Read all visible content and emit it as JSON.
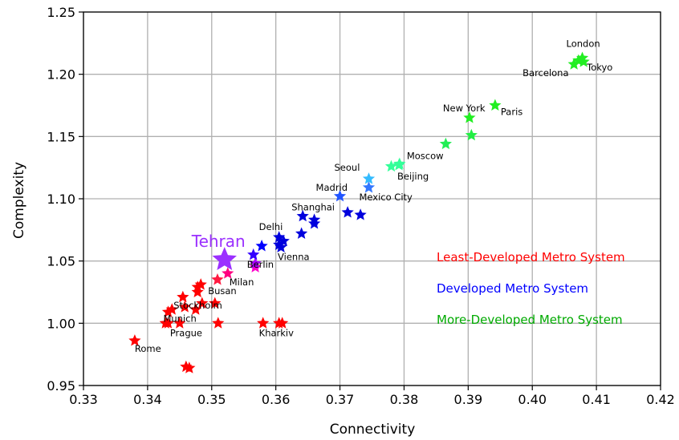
{
  "chart_data": {
    "type": "scatter",
    "title": "",
    "xlabel": "Connectivity",
    "ylabel": "Complexity",
    "xlim": [
      0.33,
      0.42
    ],
    "ylim": [
      0.95,
      1.25
    ],
    "x_ticks": [
      "0.33",
      "0.34",
      "0.35",
      "0.36",
      "0.37",
      "0.38",
      "0.39",
      "0.40",
      "0.41",
      "0.42"
    ],
    "y_ticks": [
      "0.95",
      "1.00",
      "1.05",
      "1.10",
      "1.15",
      "1.20",
      "1.25"
    ],
    "grid": true,
    "marker": "star",
    "legend": [
      {
        "label": "Least-Developed Metro System",
        "color": "#ff0000"
      },
      {
        "label": "Developed Metro System",
        "color": "#0000ff"
      },
      {
        "label": "More-Developed Metro System",
        "color": "#00aa00"
      }
    ],
    "highlight": {
      "label": "Tehran",
      "x": 0.352,
      "y": 1.051,
      "color": "#9b30ff"
    },
    "points": [
      {
        "x": 0.338,
        "y": 0.986,
        "color": "#ff0000",
        "label": "Rome"
      },
      {
        "x": 0.3428,
        "y": 1.0,
        "color": "#ff0000",
        "label": ""
      },
      {
        "x": 0.3432,
        "y": 1.0,
        "color": "#ff0000",
        "label": ""
      },
      {
        "x": 0.345,
        "y": 1.0,
        "color": "#ff0000",
        "label": "Prague"
      },
      {
        "x": 0.351,
        "y": 1.0,
        "color": "#ff0000",
        "label": ""
      },
      {
        "x": 0.3432,
        "y": 1.009,
        "color": "#ff0000",
        "label": "Munich"
      },
      {
        "x": 0.3438,
        "y": 1.011,
        "color": "#ff0000",
        "label": ""
      },
      {
        "x": 0.3455,
        "y": 1.021,
        "color": "#ff0000",
        "label": ""
      },
      {
        "x": 0.3458,
        "y": 1.013,
        "color": "#ff0000",
        "label": "Stockholm"
      },
      {
        "x": 0.3475,
        "y": 1.011,
        "color": "#ff0000",
        "label": ""
      },
      {
        "x": 0.3485,
        "y": 1.016,
        "color": "#ff0000",
        "label": ""
      },
      {
        "x": 0.3505,
        "y": 1.016,
        "color": "#ff0000",
        "label": ""
      },
      {
        "x": 0.3478,
        "y": 1.025,
        "color": "#ff0000",
        "label": ""
      },
      {
        "x": 0.3478,
        "y": 1.029,
        "color": "#ff0000",
        "label": ""
      },
      {
        "x": 0.3483,
        "y": 1.031,
        "color": "#ff0000",
        "label": "Busan"
      },
      {
        "x": 0.3509,
        "y": 1.035,
        "color": "#ff1a40",
        "label": ""
      },
      {
        "x": 0.3525,
        "y": 1.04,
        "color": "#ff0080",
        "label": "Milan"
      },
      {
        "x": 0.346,
        "y": 0.965,
        "color": "#ff0000",
        "label": ""
      },
      {
        "x": 0.3465,
        "y": 0.964,
        "color": "#ff0000",
        "label": ""
      },
      {
        "x": 0.358,
        "y": 1.0,
        "color": "#ff0000",
        "label": ""
      },
      {
        "x": 0.3605,
        "y": 1.0,
        "color": "#ff0000",
        "label": "Kharkiv"
      },
      {
        "x": 0.361,
        "y": 1.0,
        "color": "#ff0000",
        "label": ""
      },
      {
        "x": 0.3568,
        "y": 1.045,
        "color": "#ff00cc",
        "label": ""
      },
      {
        "x": 0.3568,
        "y": 1.048,
        "color": "#aa00ff",
        "label": ""
      },
      {
        "x": 0.3565,
        "y": 1.055,
        "color": "#3300ff",
        "label": "Berlin"
      },
      {
        "x": 0.3578,
        "y": 1.062,
        "color": "#0000ff",
        "label": ""
      },
      {
        "x": 0.3605,
        "y": 1.063,
        "color": "#0000dd",
        "label": ""
      },
      {
        "x": 0.3608,
        "y": 1.061,
        "color": "#0000dd",
        "label": "Vienna"
      },
      {
        "x": 0.3605,
        "y": 1.069,
        "color": "#0000dd",
        "label": "Delhi"
      },
      {
        "x": 0.3612,
        "y": 1.066,
        "color": "#0000dd",
        "label": ""
      },
      {
        "x": 0.364,
        "y": 1.072,
        "color": "#0000dd",
        "label": ""
      },
      {
        "x": 0.3642,
        "y": 1.086,
        "color": "#0000dd",
        "label": "Shanghai"
      },
      {
        "x": 0.366,
        "y": 1.08,
        "color": "#0000dd",
        "label": ""
      },
      {
        "x": 0.366,
        "y": 1.083,
        "color": "#0000dd",
        "label": ""
      },
      {
        "x": 0.3712,
        "y": 1.089,
        "color": "#0000dd",
        "label": ""
      },
      {
        "x": 0.3732,
        "y": 1.087,
        "color": "#0000dd",
        "label": ""
      },
      {
        "x": 0.37,
        "y": 1.102,
        "color": "#2255ff",
        "label": "Madrid"
      },
      {
        "x": 0.3745,
        "y": 1.109,
        "color": "#3377ff",
        "label": "Mexico City"
      },
      {
        "x": 0.3745,
        "y": 1.116,
        "color": "#33bbff",
        "label": "Seoul"
      },
      {
        "x": 0.378,
        "y": 1.126,
        "color": "#33ff99",
        "label": ""
      },
      {
        "x": 0.3792,
        "y": 1.127,
        "color": "#33ff99",
        "label": "Beijing"
      },
      {
        "x": 0.3793,
        "y": 1.128,
        "color": "#33ff99",
        "label": "Moscow"
      },
      {
        "x": 0.3865,
        "y": 1.144,
        "color": "#22ee55",
        "label": ""
      },
      {
        "x": 0.3905,
        "y": 1.151,
        "color": "#22ee44",
        "label": ""
      },
      {
        "x": 0.3902,
        "y": 1.165,
        "color": "#22ee22",
        "label": "New York"
      },
      {
        "x": 0.3942,
        "y": 1.175,
        "color": "#22ee22",
        "label": "Paris"
      },
      {
        "x": 0.4065,
        "y": 1.208,
        "color": "#22ee22",
        "label": "Barcelona"
      },
      {
        "x": 0.4072,
        "y": 1.211,
        "color": "#22ee22",
        "label": ""
      },
      {
        "x": 0.4078,
        "y": 1.213,
        "color": "#22ee22",
        "label": "London"
      },
      {
        "x": 0.408,
        "y": 1.21,
        "color": "#22ee22",
        "label": "Tokyo"
      }
    ]
  }
}
